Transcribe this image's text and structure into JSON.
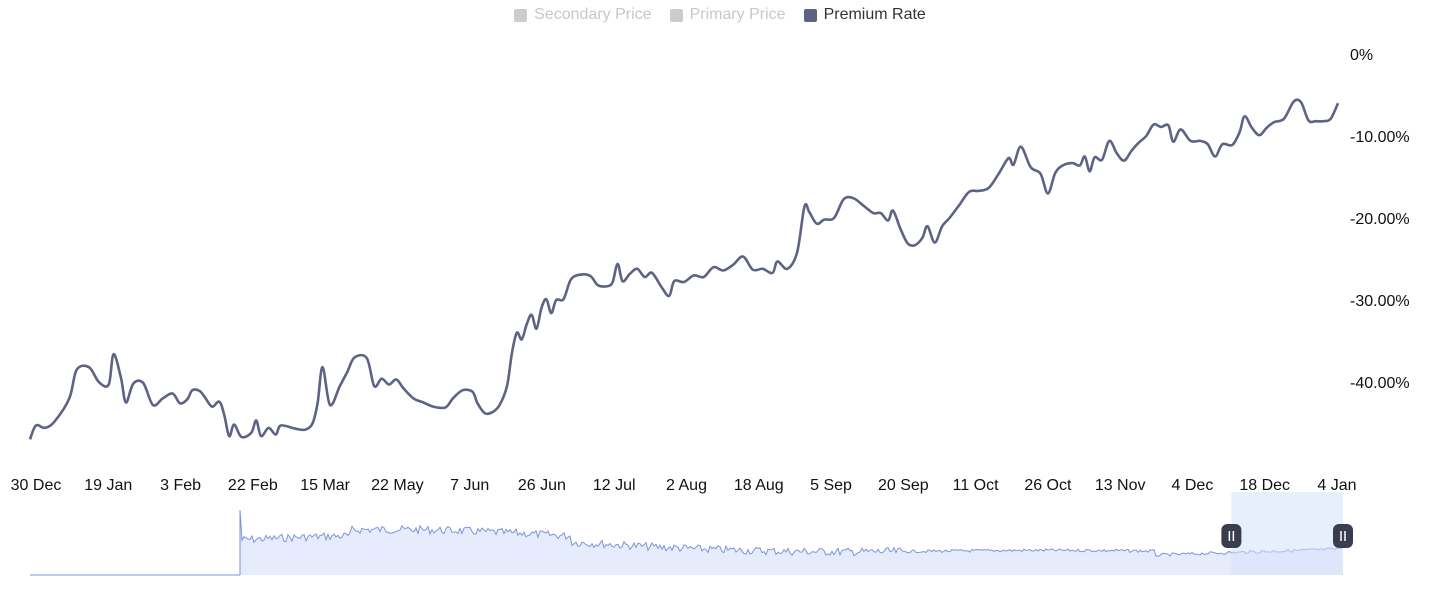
{
  "legend": [
    {
      "label": "Secondary Price",
      "color": "#cccccc",
      "active": false
    },
    {
      "label": "Primary Price",
      "color": "#cccccc",
      "active": false
    },
    {
      "label": "Premium Rate",
      "color": "#5e6385",
      "active": true
    }
  ],
  "chart_data": {
    "type": "line",
    "title": "",
    "xlabel": "",
    "ylabel": "",
    "ylim": [
      -48,
      0
    ],
    "grid": false,
    "legend_position": "top-center",
    "y_ticks": [
      0,
      -10,
      -20,
      -30,
      -40
    ],
    "y_tick_labels": [
      "0%",
      "-10.00%",
      "-20.00%",
      "-30.00%",
      "-40.00%"
    ],
    "x_tick_labels": [
      "30 Dec",
      "19 Jan",
      "3 Feb",
      "22 Feb",
      "15 Mar",
      "22 May",
      "7 Jun",
      "26 Jun",
      "12 Jul",
      "2 Aug",
      "18 Aug",
      "5 Sep",
      "20 Sep",
      "11 Oct",
      "26 Oct",
      "13 Nov",
      "4 Dec",
      "18 Dec",
      "4 Jan"
    ],
    "series": [
      {
        "name": "Premium Rate",
        "color": "#5e6385",
        "points": [
          [
            0,
            -47.0
          ],
          [
            0.12,
            -45.3
          ],
          [
            0.3,
            -45.6
          ],
          [
            0.5,
            -44.8
          ],
          [
            0.8,
            -42.0
          ],
          [
            0.95,
            -38.5
          ],
          [
            1.2,
            -38.2
          ],
          [
            1.4,
            -40.0
          ],
          [
            1.6,
            -40.3
          ],
          [
            1.7,
            -36.6
          ],
          [
            1.85,
            -39.5
          ],
          [
            1.95,
            -42.5
          ],
          [
            2.1,
            -40.2
          ],
          [
            2.3,
            -40.1
          ],
          [
            2.5,
            -42.8
          ],
          [
            2.7,
            -42.0
          ],
          [
            2.9,
            -41.4
          ],
          [
            3.05,
            -42.6
          ],
          [
            3.2,
            -42.1
          ],
          [
            3.3,
            -41.0
          ],
          [
            3.45,
            -41.1
          ],
          [
            3.55,
            -41.8
          ],
          [
            3.7,
            -43.0
          ],
          [
            3.85,
            -42.4
          ],
          [
            3.95,
            -44.0
          ],
          [
            4.05,
            -46.6
          ],
          [
            4.15,
            -45.2
          ],
          [
            4.3,
            -46.7
          ],
          [
            4.5,
            -46.2
          ],
          [
            4.6,
            -44.7
          ],
          [
            4.7,
            -46.6
          ],
          [
            4.85,
            -45.6
          ],
          [
            5.0,
            -46.4
          ],
          [
            5.1,
            -45.3
          ],
          [
            5.4,
            -45.7
          ],
          [
            5.6,
            -45.8
          ],
          [
            5.75,
            -45.0
          ],
          [
            5.85,
            -42.5
          ],
          [
            5.95,
            -38.2
          ],
          [
            6.1,
            -42.8
          ],
          [
            6.3,
            -40.5
          ],
          [
            6.45,
            -38.8
          ],
          [
            6.6,
            -37.0
          ],
          [
            6.85,
            -37.1
          ],
          [
            7.0,
            -40.5
          ],
          [
            7.15,
            -39.6
          ],
          [
            7.3,
            -40.3
          ],
          [
            7.45,
            -39.7
          ],
          [
            7.6,
            -40.8
          ],
          [
            7.8,
            -42.0
          ],
          [
            8.0,
            -42.5
          ],
          [
            8.2,
            -43.0
          ],
          [
            8.45,
            -43.1
          ],
          [
            8.6,
            -42.0
          ],
          [
            8.8,
            -41.0
          ],
          [
            9.0,
            -41.2
          ],
          [
            9.1,
            -42.6
          ],
          [
            9.25,
            -43.8
          ],
          [
            9.4,
            -43.7
          ],
          [
            9.55,
            -42.8
          ],
          [
            9.7,
            -40.5
          ],
          [
            9.8,
            -36.5
          ],
          [
            9.9,
            -34.0
          ],
          [
            10.0,
            -34.8
          ],
          [
            10.1,
            -33.0
          ],
          [
            10.2,
            -31.8
          ],
          [
            10.3,
            -33.5
          ],
          [
            10.4,
            -31.0
          ],
          [
            10.5,
            -29.9
          ],
          [
            10.6,
            -31.6
          ],
          [
            10.7,
            -30.0
          ],
          [
            10.85,
            -29.9
          ],
          [
            11.0,
            -27.5
          ],
          [
            11.2,
            -26.9
          ],
          [
            11.4,
            -27.1
          ],
          [
            11.55,
            -28.2
          ],
          [
            11.75,
            -28.3
          ],
          [
            11.85,
            -27.8
          ],
          [
            11.95,
            -25.6
          ],
          [
            12.05,
            -27.7
          ],
          [
            12.2,
            -26.8
          ],
          [
            12.35,
            -26.2
          ],
          [
            12.5,
            -27.2
          ],
          [
            12.65,
            -26.7
          ],
          [
            12.85,
            -28.5
          ],
          [
            13.0,
            -29.5
          ],
          [
            13.1,
            -27.7
          ],
          [
            13.3,
            -27.8
          ],
          [
            13.5,
            -27.0
          ],
          [
            13.7,
            -27.2
          ],
          [
            13.9,
            -26.0
          ],
          [
            14.1,
            -26.4
          ],
          [
            14.3,
            -25.7
          ],
          [
            14.5,
            -24.7
          ],
          [
            14.7,
            -26.3
          ],
          [
            14.9,
            -26.2
          ],
          [
            15.1,
            -26.7
          ],
          [
            15.2,
            -25.3
          ],
          [
            15.4,
            -26.2
          ],
          [
            15.6,
            -24.2
          ],
          [
            15.75,
            -18.6
          ],
          [
            15.85,
            -19.3
          ],
          [
            16.0,
            -20.7
          ],
          [
            16.15,
            -20.2
          ],
          [
            16.35,
            -20.0
          ],
          [
            16.55,
            -17.7
          ],
          [
            16.75,
            -17.6
          ],
          [
            16.95,
            -18.5
          ],
          [
            17.15,
            -19.4
          ],
          [
            17.3,
            -19.4
          ],
          [
            17.45,
            -20.3
          ],
          [
            17.55,
            -19.1
          ],
          [
            17.7,
            -21.3
          ],
          [
            17.85,
            -23.1
          ],
          [
            18.0,
            -23.3
          ],
          [
            18.15,
            -22.4
          ],
          [
            18.25,
            -21.0
          ],
          [
            18.4,
            -23.0
          ],
          [
            18.55,
            -21.0
          ],
          [
            18.7,
            -20.0
          ],
          [
            18.9,
            -18.4
          ],
          [
            19.1,
            -16.8
          ],
          [
            19.3,
            -16.7
          ],
          [
            19.5,
            -16.3
          ],
          [
            19.7,
            -14.6
          ],
          [
            19.9,
            -12.7
          ],
          [
            20.0,
            -13.5
          ],
          [
            20.15,
            -11.3
          ],
          [
            20.35,
            -13.8
          ],
          [
            20.55,
            -14.6
          ],
          [
            20.7,
            -17.0
          ],
          [
            20.85,
            -14.5
          ],
          [
            21.0,
            -13.6
          ],
          [
            21.2,
            -13.3
          ],
          [
            21.35,
            -13.6
          ],
          [
            21.45,
            -12.5
          ],
          [
            21.55,
            -14.3
          ],
          [
            21.65,
            -12.6
          ],
          [
            21.8,
            -12.9
          ],
          [
            21.95,
            -10.6
          ],
          [
            22.1,
            -12.1
          ],
          [
            22.25,
            -13.0
          ],
          [
            22.4,
            -11.8
          ],
          [
            22.55,
            -10.8
          ],
          [
            22.7,
            -10.0
          ],
          [
            22.85,
            -8.6
          ],
          [
            23.0,
            -8.9
          ],
          [
            23.15,
            -8.7
          ],
          [
            23.25,
            -10.7
          ],
          [
            23.4,
            -9.2
          ],
          [
            23.6,
            -10.6
          ],
          [
            23.8,
            -10.6
          ],
          [
            23.95,
            -11.0
          ],
          [
            24.1,
            -12.5
          ],
          [
            24.25,
            -11.0
          ],
          [
            24.45,
            -11.1
          ],
          [
            24.6,
            -9.5
          ],
          [
            24.7,
            -7.6
          ],
          [
            24.85,
            -9.0
          ],
          [
            25.0,
            -9.9
          ],
          [
            25.15,
            -9.0
          ],
          [
            25.3,
            -8.3
          ],
          [
            25.5,
            -7.9
          ],
          [
            25.7,
            -5.8
          ],
          [
            25.85,
            -5.9
          ],
          [
            26.0,
            -8.1
          ],
          [
            26.15,
            -8.2
          ],
          [
            26.3,
            -8.2
          ],
          [
            26.45,
            -7.9
          ],
          [
            26.6,
            -6.0
          ]
        ]
      }
    ],
    "navigator": {
      "fill_color": "#e6ecfb",
      "line_color": "#7b96d6",
      "selection_color": "#d6e1fa",
      "selection_range": [
        0.915,
        1.0
      ]
    }
  }
}
